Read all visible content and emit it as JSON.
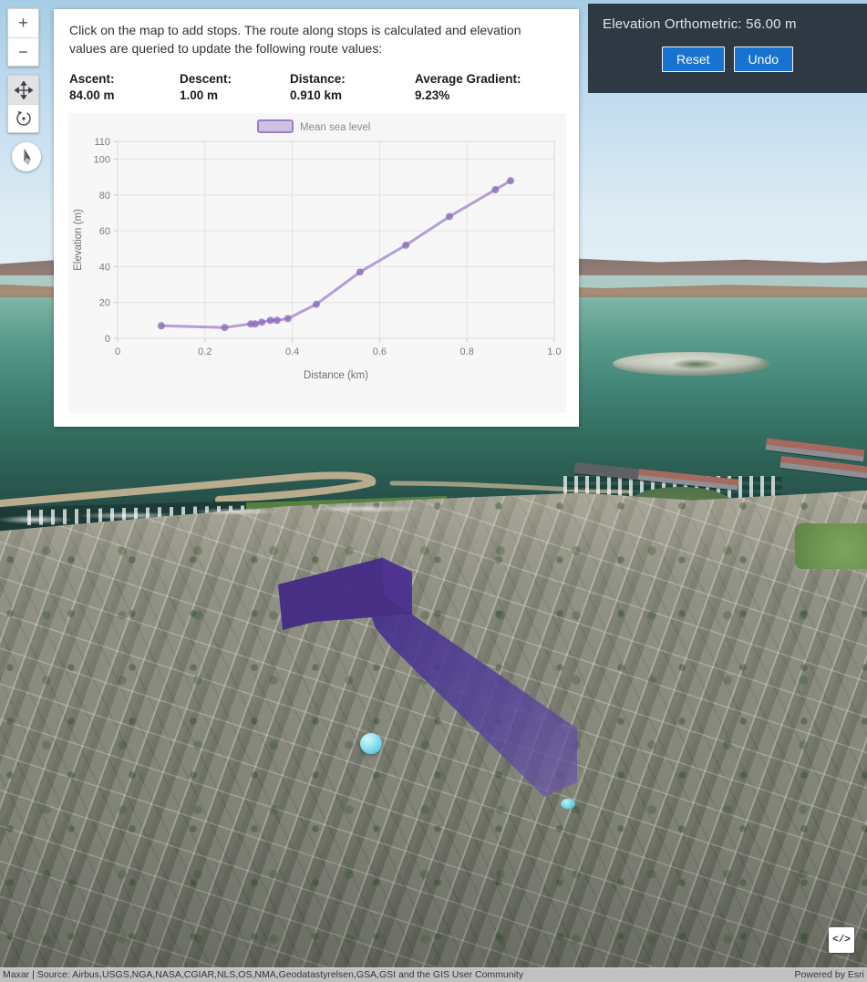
{
  "map_toolbar": {
    "zoom_in_label": "+",
    "zoom_out_label": "−",
    "icons": [
      "plus-icon",
      "minus-icon",
      "pan-move-icon",
      "rotate-icon",
      "compass-icon"
    ]
  },
  "info_panel": {
    "instructions": "Click on the map to add stops. The route along stops is calculated and elevation values are queried to update the following route values:",
    "stats": [
      {
        "label": "Ascent:",
        "value": "84.00 m"
      },
      {
        "label": "Descent:",
        "value": "1.00 m"
      },
      {
        "label": "Distance:",
        "value": "0.910 km"
      },
      {
        "label": "Average Gradient:",
        "value": "9.23%"
      }
    ]
  },
  "elevation_panel": {
    "title": "Elevation Orthometric: 56.00 m",
    "reset_label": "Reset",
    "undo_label": "Undo",
    "button_color": "#1773cf",
    "background_color": "#2a343d"
  },
  "attribution": {
    "left": "Maxar | Source: Airbus,USGS,NGA,NASA,CGIAR,NLS,OS,NMA,Geodatastyrelsen,GSA,GSI and the GIS User Community",
    "right": "Powered by Esri"
  },
  "code_button_label": "</>",
  "route_colors": {
    "ribbon": "#462f89",
    "stop_marker": "#7fdcec"
  },
  "chart_data": {
    "type": "line",
    "title": "",
    "xlabel": "Distance (km)",
    "ylabel": "Elevation (m)",
    "xlim": [
      0,
      1.0
    ],
    "ylim": [
      0,
      110
    ],
    "xticks": [
      {
        "v": 0,
        "label": "0"
      },
      {
        "v": 0.2,
        "label": "0.2"
      },
      {
        "v": 0.4,
        "label": "0.4"
      },
      {
        "v": 0.6,
        "label": "0.6"
      },
      {
        "v": 0.8,
        "label": "0.8"
      },
      {
        "v": 1.0,
        "label": "1.0"
      }
    ],
    "yticks": [
      0,
      20,
      40,
      60,
      80,
      100,
      110
    ],
    "grid": true,
    "legend_position": "top",
    "series": [
      {
        "name": "Mean sea level",
        "x": [
          0.1,
          0.245,
          0.305,
          0.315,
          0.33,
          0.35,
          0.365,
          0.39,
          0.455,
          0.555,
          0.66,
          0.76,
          0.865,
          0.9
        ],
        "y": [
          7,
          6,
          8,
          8,
          9,
          10,
          10,
          11,
          19,
          37,
          52,
          68,
          83,
          88
        ]
      }
    ],
    "line_color": "#b49dd8",
    "marker_color": "#8e6cbd",
    "legend_swatch_fill": "#cdc0e2",
    "legend_swatch_stroke": "#9a7fc7"
  }
}
